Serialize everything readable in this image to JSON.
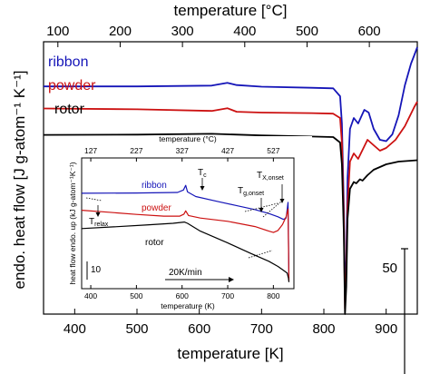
{
  "chart_data": [
    {
      "type": "line",
      "xlabel": "temperature [K]",
      "ylabel": "endo. heat flow [J g-atom⁻¹ K⁻¹]",
      "top_xlabel": "temperature  [°C]",
      "xlim": [
        350,
        950
      ],
      "ylim": [
        0,
        100
      ],
      "x_ticks": [
        400,
        500,
        600,
        700,
        800,
        900
      ],
      "top_ticks": [
        100,
        200,
        300,
        400,
        500,
        600
      ],
      "scale_bar_label": "50",
      "scale_bar_value": 50,
      "series": [
        {
          "name": "ribbon",
          "color": "#1515b8",
          "x": [
            350,
            500,
            620,
            645,
            660,
            700,
            780,
            815,
            826,
            829,
            832,
            834,
            836,
            838,
            842,
            848,
            855,
            865,
            872,
            880,
            890,
            900,
            910,
            920,
            930,
            940,
            945,
            950
          ],
          "y": [
            83.6,
            83.6,
            83.9,
            84.9,
            84.1,
            83.5,
            83.1,
            82.9,
            80,
            70,
            40,
            5,
            20,
            50,
            68,
            72,
            70,
            75,
            74,
            68,
            64,
            63.5,
            66,
            73,
            84,
            92,
            95,
            98
          ]
        },
        {
          "name": "powder",
          "color": "#cc1111",
          "x": [
            350,
            500,
            620,
            645,
            660,
            700,
            780,
            815,
            826,
            829,
            832,
            834,
            836,
            838,
            842,
            848,
            855,
            870,
            880,
            890,
            900,
            915,
            930,
            945,
            950
          ],
          "y": [
            75.5,
            75.2,
            74.6,
            75.6,
            74.3,
            74,
            73.8,
            73.6,
            72,
            63,
            35,
            2,
            15,
            40,
            56,
            59,
            57,
            64,
            62,
            60,
            61,
            64,
            69,
            76,
            78
          ]
        },
        {
          "name": "rotor",
          "color": "#000000",
          "x": [
            350,
            500,
            620,
            700,
            780,
            815,
            826,
            829,
            832,
            834,
            836,
            838,
            842,
            848,
            852,
            858,
            862,
            870,
            880,
            900,
            920,
            950
          ],
          "y": [
            65.8,
            65.9,
            66.2,
            65.6,
            65.2,
            65,
            63,
            55,
            30,
            0,
            10,
            35,
            46,
            48.5,
            48,
            49.5,
            49,
            51,
            53,
            55,
            56,
            56.5
          ]
        }
      ]
    },
    {
      "type": "line",
      "title": "",
      "xlabel": "temperature (K)",
      "ylabel": "heat flow endo. up (kJ g-atom⁻¹K⁻¹)",
      "top_xlabel": "temperature (°C)",
      "xlim": [
        380,
        845
      ],
      "ylim": [
        0,
        100
      ],
      "x_ticks": [
        400,
        500,
        600,
        700,
        800
      ],
      "top_ticks": [
        127,
        227,
        327,
        427,
        527
      ],
      "scale_bar_label": "10",
      "scale_bar_value": 14,
      "rate_label": "20K/min",
      "annotations": [
        "Tc",
        "Tg,onset",
        "TX,onset",
        "Trelax"
      ],
      "series": [
        {
          "name": "ribbon",
          "color": "#1515b8",
          "x": [
            380,
            500,
            590,
            603,
            608,
            612,
            630,
            680,
            720,
            760,
            790,
            810,
            822,
            828,
            832,
            834
          ],
          "y": [
            73,
            73.2,
            73.6,
            75.5,
            79,
            74,
            70.5,
            66.5,
            63.5,
            60.5,
            57.5,
            55,
            53,
            54,
            66,
            8
          ]
        },
        {
          "name": "powder",
          "color": "#cc1111",
          "x": [
            380,
            440,
            500,
            560,
            595,
            604,
            608,
            614,
            640,
            700,
            760,
            790,
            800,
            810,
            820,
            828,
            832,
            834
          ],
          "y": [
            60,
            58.5,
            56.8,
            55.5,
            55.5,
            57,
            59.5,
            56,
            54,
            51.5,
            47.5,
            44,
            43,
            44.5,
            49,
            55,
            61,
            6
          ]
        },
        {
          "name": "rotor",
          "color": "#000000",
          "x": [
            380,
            450,
            520,
            580,
            605,
            612,
            640,
            700,
            750,
            790,
            810,
            822,
            830,
            833,
            834
          ],
          "y": [
            46,
            47.3,
            48.7,
            50,
            51,
            50,
            44,
            35,
            27,
            21,
            17,
            14,
            12,
            8,
            5
          ]
        }
      ]
    }
  ]
}
